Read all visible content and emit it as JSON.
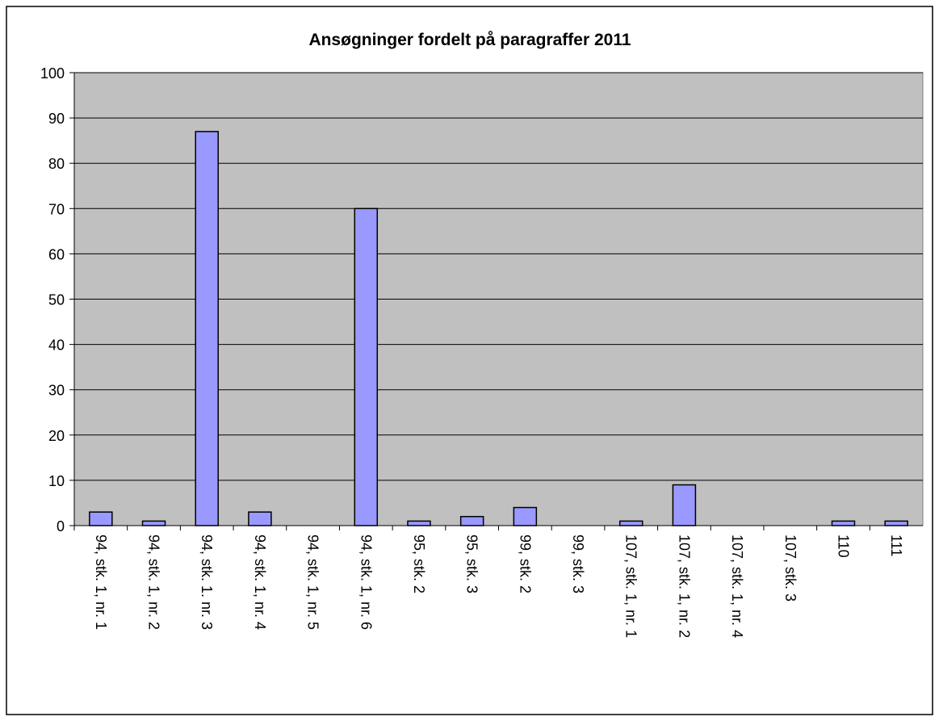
{
  "chart_data": {
    "type": "bar",
    "title": "Ansøgninger fordelt på paragraffer 2011",
    "categories": [
      "94, stk. 1, nr. 1",
      "94, stk. 1, nr. 2",
      "94, stk. 1. nr. 3",
      "94, stk. 1, nr. 4",
      "94, stk. 1, nr. 5",
      "94, stk. 1, nr. 6",
      "95, stk. 2",
      "95, stk. 3",
      "99, stk. 2",
      "99, stk. 3",
      "107, stk. 1, nr. 1",
      "107, stk. 1, nr. 2",
      "107, stk. 1, nr. 4",
      "107, stk. 3",
      "110",
      "111"
    ],
    "values": [
      3,
      1,
      87,
      3,
      0,
      70,
      1,
      2,
      4,
      0,
      1,
      9,
      0,
      0,
      1,
      1
    ],
    "color": "#9999ff",
    "ylim": [
      0,
      100
    ],
    "yticks": [
      0,
      10,
      20,
      30,
      40,
      50,
      60,
      70,
      80,
      90,
      100
    ],
    "grid": true
  }
}
